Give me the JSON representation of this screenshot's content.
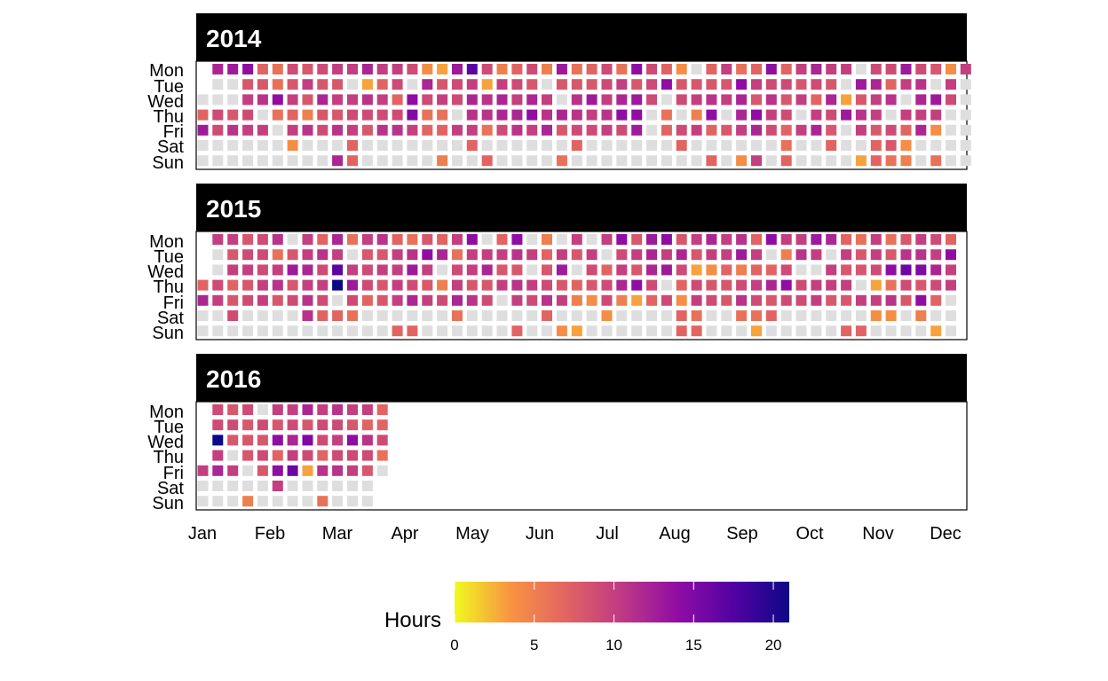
{
  "chart_data": {
    "type": "heatmap",
    "title": "",
    "facet_labels": [
      "2014",
      "2015",
      "2016"
    ],
    "day_labels": [
      "Mon",
      "Tue",
      "Wed",
      "Thu",
      "Fri",
      "Sat",
      "Sun"
    ],
    "month_labels": [
      "Jan",
      "Feb",
      "Mar",
      "Apr",
      "May",
      "Jun",
      "Jul",
      "Aug",
      "Sep",
      "Oct",
      "Nov",
      "Dec"
    ],
    "legend": {
      "title": "Hours",
      "ticks": [
        0,
        5,
        10,
        15,
        20
      ],
      "min": 0,
      "max": 21,
      "placement": "bottom"
    },
    "missing_color": "#dedede",
    "colormap": [
      "#f0f921",
      "#f89441",
      "#e16462",
      "#bf3984",
      "#900da4",
      "#5302a3",
      "#0d0887"
    ],
    "note_values": "Hours per day by week column; null = no data recorded (grey tile).",
    "years": [
      {
        "label": "2014",
        "first_week_start_dow": 2,
        "weeks": [
          [
            null,
            null,
            null,
            7,
            13,
            null,
            null
          ],
          [
            12,
            null,
            null,
            9,
            9,
            null,
            null
          ],
          [
            13,
            null,
            null,
            8,
            11,
            null,
            null
          ],
          [
            14,
            8,
            10,
            9,
            10,
            null,
            null
          ],
          [
            7,
            8,
            11,
            null,
            10,
            null,
            null
          ],
          [
            6,
            6,
            14,
            6,
            null,
            null,
            null
          ],
          [
            9,
            8,
            10,
            7,
            10,
            4,
            null
          ],
          [
            8,
            10,
            8,
            5,
            11,
            null,
            null
          ],
          [
            9,
            8,
            12,
            8,
            9,
            null,
            null
          ],
          [
            10,
            8,
            10,
            8,
            11,
            null,
            12
          ],
          [
            10,
            null,
            10,
            9,
            10,
            7,
            7
          ],
          [
            12,
            3,
            11,
            9,
            8,
            null,
            null
          ],
          [
            10,
            7,
            10,
            9,
            11,
            null,
            null
          ],
          [
            10,
            9,
            7,
            9,
            11,
            null,
            null
          ],
          [
            9,
            null,
            14,
            15,
            10,
            null,
            null
          ],
          [
            4,
            12,
            9,
            6,
            7,
            null,
            null
          ],
          [
            3,
            8,
            10,
            6,
            7,
            null,
            5
          ],
          [
            13,
            9,
            9,
            null,
            10,
            null,
            null
          ],
          [
            17,
            10,
            12,
            11,
            10,
            7,
            null
          ],
          [
            9,
            3,
            11,
            11,
            6,
            null,
            7
          ],
          [
            5,
            10,
            12,
            12,
            9,
            null,
            null
          ],
          [
            7,
            9,
            10,
            12,
            11,
            null,
            null
          ],
          [
            9,
            8,
            12,
            14,
            10,
            null,
            null
          ],
          [
            5,
            null,
            10,
            11,
            12,
            null,
            null
          ],
          [
            13,
            8,
            null,
            12,
            8,
            null,
            6
          ],
          [
            6,
            8,
            11,
            11,
            9,
            7,
            null
          ],
          [
            7,
            8,
            13,
            10,
            9,
            null,
            null
          ],
          [
            9,
            9,
            10,
            11,
            10,
            null,
            null
          ],
          [
            6,
            10,
            12,
            14,
            9,
            null,
            null
          ],
          [
            14,
            8,
            13,
            14,
            13,
            null,
            null
          ],
          [
            9,
            9,
            9,
            null,
            null,
            null,
            null
          ],
          [
            7,
            14,
            null,
            6,
            7,
            null,
            null
          ],
          [
            4,
            8,
            9,
            null,
            9,
            7,
            null
          ],
          [
            null,
            8,
            10,
            5,
            10,
            null,
            null
          ],
          [
            7,
            8,
            11,
            14,
            7,
            null,
            7
          ],
          [
            10,
            8,
            10,
            null,
            8,
            null,
            null
          ],
          [
            6,
            14,
            12,
            12,
            10,
            null,
            4
          ],
          [
            7,
            10,
            8,
            14,
            12,
            null,
            10
          ],
          [
            14,
            9,
            11,
            10,
            9,
            null,
            null
          ],
          [
            7,
            9,
            8,
            9,
            7,
            6,
            7
          ],
          [
            10,
            8,
            10,
            null,
            10,
            null,
            null
          ],
          [
            12,
            9,
            7,
            10,
            12,
            null,
            null
          ],
          [
            10,
            8,
            12,
            9,
            8,
            7,
            null
          ],
          [
            10,
            null,
            3,
            13,
            null,
            null,
            null
          ],
          [
            null,
            13,
            8,
            11,
            10,
            null,
            3
          ],
          [
            9,
            12,
            10,
            10,
            8,
            7,
            7
          ],
          [
            9,
            7,
            11,
            null,
            9,
            8,
            6
          ],
          [
            13,
            10,
            null,
            10,
            7,
            4,
            5
          ],
          [
            9,
            11,
            12,
            10,
            12,
            null,
            null
          ],
          [
            8,
            null,
            13,
            10,
            4,
            null,
            6
          ],
          [
            4,
            10,
            9,
            null,
            null,
            null,
            null
          ],
          [
            10,
            null,
            null,
            null,
            null,
            null,
            null
          ]
        ]
      },
      {
        "label": "2015",
        "first_week_start_dow": 3,
        "weeks": [
          [
            null,
            null,
            null,
            7,
            12,
            null,
            null
          ],
          [
            10,
            null,
            null,
            9,
            10,
            null,
            null
          ],
          [
            10,
            8,
            10,
            7,
            8,
            9,
            null
          ],
          [
            8,
            9,
            10,
            8,
            9,
            null,
            null
          ],
          [
            9,
            9,
            9,
            10,
            10,
            null,
            null
          ],
          [
            11,
            6,
            10,
            11,
            8,
            null,
            null
          ],
          [
            null,
            8,
            13,
            8,
            9,
            null,
            null
          ],
          [
            10,
            10,
            12,
            10,
            11,
            11,
            null
          ],
          [
            7,
            11,
            9,
            10,
            9,
            7,
            null
          ],
          [
            12,
            10,
            17,
            21,
            null,
            7,
            null
          ],
          [
            6,
            null,
            10,
            13,
            9,
            6,
            null
          ],
          [
            10,
            8,
            9,
            9,
            7,
            null,
            null
          ],
          [
            11,
            8,
            10,
            8,
            8,
            null,
            null
          ],
          [
            7,
            10,
            10,
            10,
            10,
            null,
            7
          ],
          [
            6,
            11,
            13,
            9,
            12,
            null,
            7
          ],
          [
            8,
            14,
            10,
            8,
            10,
            null,
            null
          ],
          [
            7,
            12,
            null,
            5,
            9,
            null,
            null
          ],
          [
            10,
            6,
            9,
            10,
            12,
            6,
            null
          ],
          [
            14,
            10,
            10,
            8,
            11,
            null,
            null
          ],
          [
            null,
            10,
            12,
            8,
            9,
            null,
            null
          ],
          [
            7,
            10,
            8,
            10,
            null,
            null,
            null
          ],
          [
            14,
            11,
            8,
            11,
            10,
            null,
            7
          ],
          [
            null,
            10,
            null,
            10,
            9,
            null,
            null
          ],
          [
            5,
            7,
            8,
            9,
            11,
            7,
            null
          ],
          [
            null,
            10,
            13,
            8,
            10,
            null,
            4
          ],
          [
            10,
            8,
            null,
            7,
            5,
            null,
            3
          ],
          [
            null,
            10,
            9,
            8,
            4,
            null,
            null
          ],
          [
            10,
            null,
            7,
            9,
            9,
            4,
            null
          ],
          [
            14,
            9,
            10,
            12,
            5,
            null,
            null
          ],
          [
            8,
            10,
            8,
            14,
            3,
            null,
            null
          ],
          [
            13,
            12,
            12,
            9,
            7,
            null,
            null
          ],
          [
            14,
            10,
            13,
            null,
            9,
            null,
            null
          ],
          [
            8,
            12,
            9,
            7,
            4,
            7,
            7
          ],
          [
            10,
            8,
            3,
            9,
            10,
            6,
            7
          ],
          [
            12,
            10,
            4,
            8,
            9,
            null,
            null
          ],
          [
            10,
            10,
            7,
            8,
            8,
            null,
            null
          ],
          [
            11,
            13,
            5,
            9,
            11,
            6,
            null
          ],
          [
            7,
            10,
            7,
            10,
            9,
            6,
            3
          ],
          [
            14,
            null,
            7,
            12,
            8,
            7,
            null
          ],
          [
            10,
            5,
            9,
            14,
            9,
            null,
            null
          ],
          [
            10,
            11,
            null,
            9,
            9,
            null,
            null
          ],
          [
            13,
            10,
            null,
            10,
            10,
            null,
            null
          ],
          [
            12,
            null,
            10,
            10,
            8,
            null,
            null
          ],
          [
            7,
            10,
            8,
            10,
            8,
            null,
            7
          ],
          [
            6,
            8,
            8,
            null,
            10,
            null,
            7
          ],
          [
            10,
            10,
            9,
            3,
            10,
            4,
            null
          ],
          [
            6,
            8,
            14,
            6,
            11,
            4,
            null
          ],
          [
            8,
            11,
            16,
            9,
            8,
            null,
            null
          ],
          [
            10,
            11,
            15,
            8,
            14,
            5,
            null
          ],
          [
            9,
            10,
            12,
            9,
            7,
            null,
            3
          ],
          [
            7,
            14,
            10,
            10,
            null,
            null,
            null
          ]
        ]
      },
      {
        "label": "2016",
        "first_week_start_dow": 4,
        "weeks": [
          [
            null,
            null,
            null,
            null,
            10,
            null,
            null
          ],
          [
            9,
            9,
            21,
            10,
            12,
            null,
            null
          ],
          [
            8,
            9,
            8,
            null,
            10,
            null,
            null
          ],
          [
            9,
            8,
            8,
            8,
            null,
            null,
            5
          ],
          [
            null,
            9,
            8,
            9,
            8,
            null,
            null
          ],
          [
            10,
            8,
            14,
            7,
            14,
            10,
            null
          ],
          [
            10,
            9,
            12,
            10,
            16,
            null,
            null
          ],
          [
            12,
            8,
            15,
            9,
            3,
            null,
            null
          ],
          [
            10,
            9,
            9,
            7,
            11,
            null,
            6
          ],
          [
            11,
            9,
            10,
            9,
            11,
            null,
            null
          ],
          [
            10,
            8,
            14,
            9,
            10,
            null,
            null
          ],
          [
            10,
            7,
            11,
            9,
            8,
            null,
            null
          ],
          [
            7,
            7,
            9,
            6,
            null,
            null,
            null
          ]
        ]
      }
    ]
  }
}
